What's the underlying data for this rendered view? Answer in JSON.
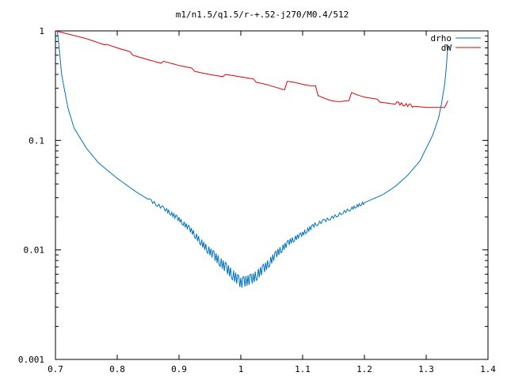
{
  "chart_data": {
    "type": "line",
    "title": "m1/n1.5/q1.5/r-+.52-j270/M0.4/512",
    "xlabel": "",
    "ylabel": "",
    "xlim": [
      0.7,
      1.4
    ],
    "ylim": [
      0.001,
      1
    ],
    "yscale": "log",
    "grid": false,
    "legend_position": "top-right",
    "x_ticks": [
      0.7,
      0.8,
      0.9,
      1.0,
      1.1,
      1.2,
      1.3,
      1.4
    ],
    "x_tick_labels": [
      "0.7",
      "0.8",
      "0.9",
      "1",
      "1.1",
      "1.2",
      "1.3",
      "1.4"
    ],
    "y_ticks": [
      1,
      0.1,
      0.01,
      0.001
    ],
    "y_tick_labels": [
      "1",
      "0.1",
      "0.01",
      "0.001"
    ],
    "series": [
      {
        "name": "drho",
        "color": "#0072bd",
        "x": [
          0.703,
          0.705,
          0.71,
          0.72,
          0.73,
          0.75,
          0.77,
          0.8,
          0.83,
          0.85,
          0.88,
          0.9,
          0.92,
          0.94,
          0.96,
          0.98,
          1.0,
          1.02,
          1.04,
          1.06,
          1.08,
          1.1,
          1.12,
          1.15,
          1.18,
          1.2,
          1.23,
          1.25,
          1.27,
          1.29,
          1.31,
          1.32,
          1.325,
          1.33,
          1.333,
          1.335
        ],
        "y": [
          1.0,
          0.8,
          0.4,
          0.2,
          0.13,
          0.085,
          0.062,
          0.045,
          0.034,
          0.029,
          0.023,
          0.019,
          0.015,
          0.011,
          0.0085,
          0.0065,
          0.005,
          0.0055,
          0.007,
          0.0095,
          0.012,
          0.014,
          0.017,
          0.02,
          0.024,
          0.027,
          0.032,
          0.038,
          0.048,
          0.065,
          0.11,
          0.16,
          0.22,
          0.33,
          0.5,
          0.75
        ]
      },
      {
        "name": "dW",
        "color": "#e00000",
        "x": [
          0.7,
          0.75,
          0.8,
          0.85,
          0.9,
          0.95,
          1.0,
          1.05,
          1.1,
          1.15,
          1.2,
          1.25,
          1.28,
          1.3,
          1.32,
          1.33,
          1.335
        ],
        "y": [
          1.0,
          0.85,
          0.68,
          0.56,
          0.47,
          0.41,
          0.37,
          0.33,
          0.3,
          0.27,
          0.24,
          0.22,
          0.205,
          0.2,
          0.2,
          0.2,
          0.23
        ]
      }
    ]
  }
}
